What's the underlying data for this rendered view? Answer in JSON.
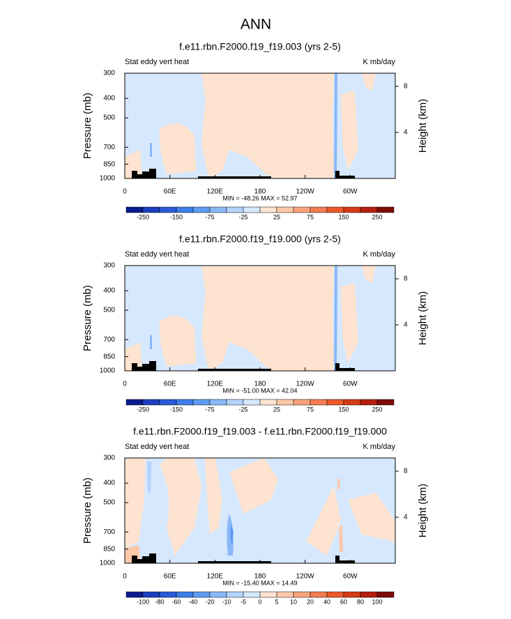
{
  "title": "ANN",
  "chart_data": [
    {
      "type": "contour",
      "title": "f.e11.rbn.F2000.f19_f19.003 (yrs 2-5)",
      "left_label": "Stat eddy vert heat",
      "right_label": "K mb/day",
      "ylabel": "Pressure (mb)",
      "y2label": "Height (km)",
      "log_y": true,
      "xlim": [
        0,
        360
      ],
      "xticks": [
        0,
        {
          "value": 60,
          "label": "60E"
        },
        {
          "value": 120,
          "label": "120E"
        },
        180,
        {
          "value": 240,
          "label": "120W"
        },
        {
          "value": 300,
          "label": "60W"
        }
      ],
      "ylim": [
        1000,
        300
      ],
      "yticks": [
        300,
        400,
        500,
        700,
        850,
        1000
      ],
      "y2lim": [
        0,
        9.15
      ],
      "y2ticks": [
        4,
        8
      ],
      "stats": "MIN = -48.26  MAX = 52.97",
      "colorbar": {
        "label_step": 2,
        "levels": [
          -250,
          -150,
          -75,
          -25,
          25,
          75,
          150,
          250
        ],
        "colors": [
          "#0b1a8c",
          "#1c3fbf",
          "#2a5ad6",
          "#3d7ee8",
          "#5f9bf2",
          "#8ab8f7",
          "#b3d3fb",
          "#d6e8fd",
          "#fde3d0",
          "#fcc8a8",
          "#f9a47c",
          "#f47c52",
          "#ec5a2c",
          "#d63a17",
          "#b41f0e",
          "#7e0b05"
        ]
      }
    },
    {
      "type": "contour",
      "title": "f.e11.rbn.F2000.f19_f19.000 (yrs 2-5)",
      "left_label": "Stat eddy vert heat",
      "right_label": "K mb/day",
      "ylabel": "Pressure (mb)",
      "y2label": "Height (km)",
      "log_y": true,
      "xlim": [
        0,
        360
      ],
      "xticks": [
        0,
        {
          "value": 60,
          "label": "60E"
        },
        {
          "value": 120,
          "label": "120E"
        },
        180,
        {
          "value": 240,
          "label": "120W"
        },
        {
          "value": 300,
          "label": "60W"
        }
      ],
      "ylim": [
        1000,
        300
      ],
      "yticks": [
        300,
        400,
        500,
        700,
        850,
        1000
      ],
      "y2lim": [
        0,
        9.15
      ],
      "y2ticks": [
        4,
        8
      ],
      "stats": "MIN = -51.00  MAX = 42.04",
      "colorbar": {
        "label_step": 2,
        "levels": [
          -250,
          -150,
          -75,
          -25,
          25,
          75,
          150,
          250
        ],
        "colors": [
          "#0b1a8c",
          "#1c3fbf",
          "#2a5ad6",
          "#3d7ee8",
          "#5f9bf2",
          "#8ab8f7",
          "#b3d3fb",
          "#d6e8fd",
          "#fde3d0",
          "#fcc8a8",
          "#f9a47c",
          "#f47c52",
          "#ec5a2c",
          "#d63a17",
          "#b41f0e",
          "#7e0b05"
        ]
      }
    },
    {
      "type": "contour",
      "title": "f.e11.rbn.F2000.f19_f19.003 - f.e11.rbn.F2000.f19_f19.000",
      "left_label": "Stat eddy vert heat",
      "right_label": "K mb/day",
      "ylabel": "Pressure (mb)",
      "y2label": "Height (km)",
      "log_y": true,
      "xlim": [
        0,
        360
      ],
      "xticks": [
        0,
        {
          "value": 60,
          "label": "60E"
        },
        {
          "value": 120,
          "label": "120E"
        },
        180,
        {
          "value": 240,
          "label": "120W"
        },
        {
          "value": 300,
          "label": "60W"
        }
      ],
      "ylim": [
        1000,
        300
      ],
      "yticks": [
        300,
        400,
        500,
        700,
        850,
        1000
      ],
      "y2lim": [
        0,
        9.15
      ],
      "y2ticks": [
        4,
        8
      ],
      "stats": "MIN = -15.40  MAX = 14.49",
      "colorbar": {
        "label_step": 1,
        "levels": [
          -100,
          -80,
          -60,
          -40,
          -20,
          -10,
          -5,
          0,
          5,
          10,
          20,
          40,
          60,
          80,
          100
        ],
        "colors": [
          "#0b1a8c",
          "#1c3fbf",
          "#2a5ad6",
          "#3d7ee8",
          "#5f9bf2",
          "#8ab8f7",
          "#b3d3fb",
          "#d6e8fd",
          "#fde3d0",
          "#fcc8a8",
          "#f9a47c",
          "#f47c52",
          "#ec5a2c",
          "#d63a17",
          "#b41f0e",
          "#7e0b05"
        ]
      }
    }
  ]
}
